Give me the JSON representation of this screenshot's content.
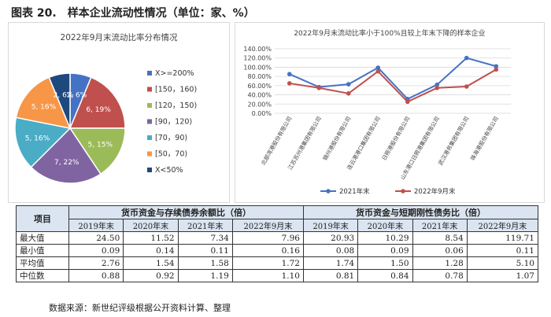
{
  "figure": {
    "number": "图表 20.",
    "title": "样本企业流动性情况（单位：家、%）"
  },
  "chart_data": [
    {
      "type": "pie",
      "title": "2022年9月末流动比率分布情况",
      "slices": [
        {
          "label": "X>=200%",
          "count": 2,
          "percent": 6,
          "data_label": "2, 6%",
          "color": "#4472c4"
        },
        {
          "label": "[150, 160)",
          "count": 6,
          "percent": 19,
          "data_label": "6, 19%",
          "color": "#c0504d"
        },
        {
          "label": "[120, 150)",
          "count": 5,
          "percent": 15,
          "data_label": "5, 15%",
          "color": "#9bbb59"
        },
        {
          "label": "[90, 120)",
          "count": 7,
          "percent": 22,
          "data_label": "7, 22%",
          "color": "#8064a2"
        },
        {
          "label": "[70, 90)",
          "count": 5,
          "percent": 16,
          "data_label": "5, 16%",
          "color": "#4bacc6"
        },
        {
          "label": "[50, 70)",
          "count": 5,
          "percent": 16,
          "data_label": "5, 16%",
          "color": "#f79646"
        },
        {
          "label": "X<50%",
          "count": 2,
          "percent": 6,
          "data_label": "2, 6%",
          "color": "#1f497d"
        }
      ],
      "legend_labels": [
        "X>=200%",
        "[150，160)",
        "[120，150)",
        "[90，120)",
        "[70，90)",
        "[50，70)",
        "X<50%"
      ],
      "legend_position": "right"
    },
    {
      "type": "line",
      "title": "2022年9月末流动比率小于100%且较上年末下降的样本企业",
      "categories": [
        "北部湾港股份有限公司",
        "江苏苏州港集团有限公司",
        "锦州港股份有限公司",
        "连云港港口集团有限公司",
        "日照港股份有限公司",
        "山东港口日照港集团有限公司",
        "武汉港务集团有限公司",
        "珠海港股份有限公司"
      ],
      "series": [
        {
          "name": "2021年末",
          "values": [
            85,
            57,
            63,
            99,
            31,
            62,
            120,
            102
          ],
          "color": "#4472c4"
        },
        {
          "name": "2022年9月末",
          "values": [
            65,
            55,
            43,
            91,
            25,
            55,
            58,
            95
          ],
          "color": "#c0504d"
        }
      ],
      "ylim": [
        0,
        140
      ],
      "yticks": [
        "0.00%",
        "20.00%",
        "40.00%",
        "60.00%",
        "80.00%",
        "100.00%",
        "120.00%",
        "140.00%"
      ],
      "grid": true,
      "legend_position": "bottom"
    },
    {
      "type": "table",
      "header_item": "项目",
      "groups": [
        "货币资金与存续债券余额比（倍）",
        "货币资金与短期刚性债务比（倍）"
      ],
      "periods": [
        "2019年末",
        "2020年末",
        "2021年末",
        "2022年9月末",
        "2019年末",
        "2020年末",
        "2021年末",
        "2022年9月末"
      ],
      "rows": [
        {
          "label": "最大值",
          "values": [
            "24.50",
            "11.52",
            "7.34",
            "7.96",
            "20.93",
            "10.29",
            "8.54",
            "119.71"
          ]
        },
        {
          "label": "最小值",
          "values": [
            "0.09",
            "0.14",
            "0.11",
            "0.16",
            "0.08",
            "0.09",
            "0.06",
            "0.11"
          ]
        },
        {
          "label": "平均值",
          "values": [
            "2.76",
            "1.54",
            "1.58",
            "1.72",
            "1.74",
            "1.50",
            "1.28",
            "5.10"
          ]
        },
        {
          "label": "中位数",
          "values": [
            "0.88",
            "0.92",
            "1.19",
            "1.10",
            "0.81",
            "0.84",
            "0.78",
            "1.07"
          ]
        }
      ]
    }
  ],
  "source": "数据来源：新世纪评级根据公开资料计算、整理"
}
